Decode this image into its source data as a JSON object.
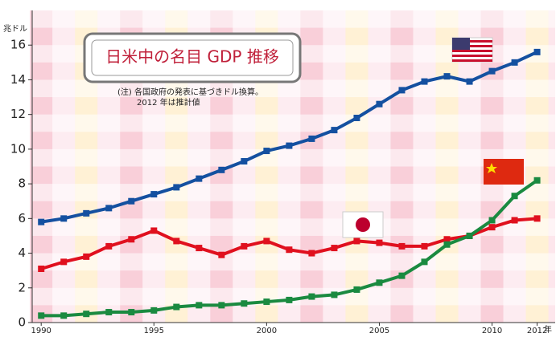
{
  "chart_data": {
    "type": "line",
    "title": "日米中の名目 GDP 推移",
    "note": [
      "(注) 各国政府の発表に基づきドル換算。",
      "2012 年は推計値"
    ],
    "y_unit": "兆ドル",
    "x_unit": "年",
    "x": [
      1990,
      1991,
      1992,
      1993,
      1994,
      1995,
      1996,
      1997,
      1998,
      1999,
      2000,
      2001,
      2002,
      2003,
      2004,
      2005,
      2006,
      2007,
      2008,
      2009,
      2010,
      2011,
      2012
    ],
    "xlim": [
      1989.6,
      2012.8
    ],
    "xticks": [
      1990,
      1995,
      2000,
      2005,
      2010,
      2012
    ],
    "ylim": [
      0,
      18
    ],
    "yticks": [
      0,
      2,
      4,
      6,
      8,
      10,
      12,
      14,
      16
    ],
    "series": [
      {
        "color": "#1450a0",
        "values": [
          5.8,
          6.0,
          6.3,
          6.6,
          7.0,
          7.4,
          7.8,
          8.3,
          8.8,
          9.3,
          9.9,
          10.2,
          10.6,
          11.1,
          11.8,
          12.6,
          13.4,
          13.9,
          14.2,
          13.9,
          14.5,
          15.0,
          15.6
        ]
      },
      {
        "color": "#e0101e",
        "values": [
          3.1,
          3.5,
          3.8,
          4.4,
          4.8,
          5.3,
          4.7,
          4.3,
          3.9,
          4.4,
          4.7,
          4.2,
          4.0,
          4.3,
          4.7,
          4.6,
          4.4,
          4.4,
          4.8,
          5.0,
          5.5,
          5.9,
          6.0
        ]
      },
      {
        "color": "#1a8a40",
        "values": [
          0.4,
          0.4,
          0.5,
          0.6,
          0.6,
          0.7,
          0.9,
          1.0,
          1.0,
          1.1,
          1.2,
          1.3,
          1.5,
          1.6,
          1.9,
          2.3,
          2.7,
          3.5,
          4.5,
          5.0,
          5.9,
          7.3,
          8.2
        ]
      }
    ]
  }
}
